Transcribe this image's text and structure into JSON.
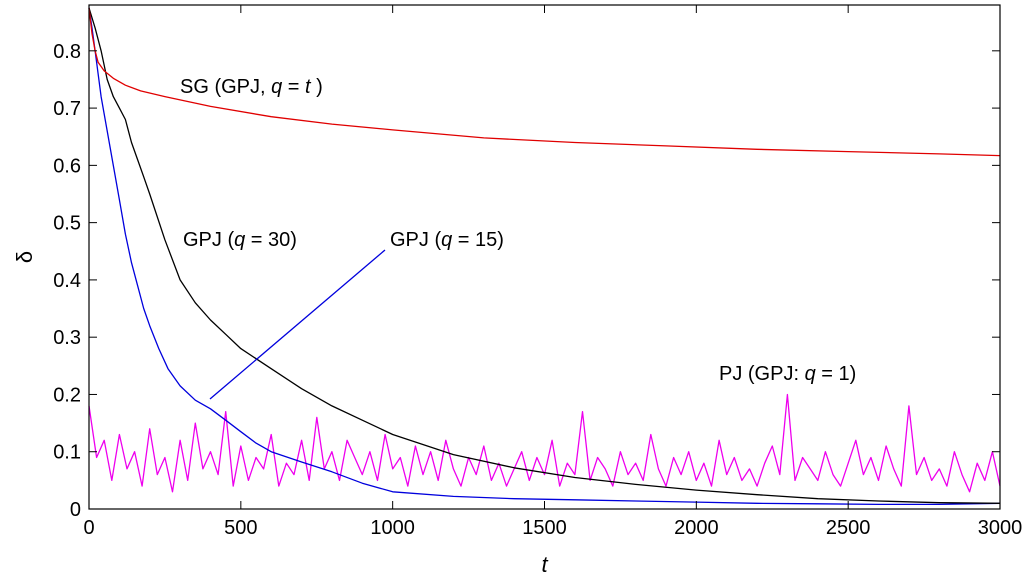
{
  "chart_data": {
    "type": "line",
    "xlabel": "t",
    "ylabel": "δ",
    "xlim": [
      0,
      3000
    ],
    "ylim": [
      0,
      0.88
    ],
    "xticks": [
      0,
      500,
      1000,
      1500,
      2000,
      2500,
      3000
    ],
    "yticks": [
      0,
      0.1,
      0.2,
      0.3,
      0.4,
      0.5,
      0.6,
      0.7,
      0.8
    ],
    "xtick_labels": [
      "0",
      "500",
      "1000",
      "1500",
      "2000",
      "2500",
      "3000"
    ],
    "ytick_labels": [
      "0",
      "0.1",
      "0.2",
      "0.3",
      "0.4",
      "0.5",
      "0.6",
      "0.7",
      "0.8"
    ],
    "grid": false,
    "colors": {
      "sg": "#e00000",
      "gpj30": "#000000",
      "gpj15": "#0000dd",
      "pj": "#ee00ee"
    },
    "series": [
      {
        "key": "sg",
        "x": [
          0,
          10,
          20,
          30,
          50,
          80,
          120,
          170,
          250,
          400,
          600,
          800,
          1000,
          1300,
          1600,
          1900,
          2200,
          2500,
          2800,
          3000
        ],
        "y": [
          0.875,
          0.83,
          0.8,
          0.78,
          0.765,
          0.752,
          0.74,
          0.73,
          0.72,
          0.703,
          0.685,
          0.672,
          0.662,
          0.648,
          0.64,
          0.634,
          0.628,
          0.624,
          0.62,
          0.617
        ]
      },
      {
        "key": "gpj30",
        "x": [
          0,
          20,
          40,
          60,
          80,
          100,
          120,
          140,
          160,
          180,
          200,
          250,
          300,
          350,
          400,
          450,
          500,
          600,
          700,
          800,
          900,
          1000,
          1200,
          1400,
          1600,
          1800,
          2000,
          2200,
          2400,
          2600,
          2800,
          3000
        ],
        "y": [
          0.875,
          0.84,
          0.8,
          0.75,
          0.72,
          0.7,
          0.68,
          0.64,
          0.61,
          0.58,
          0.55,
          0.47,
          0.4,
          0.36,
          0.33,
          0.305,
          0.28,
          0.245,
          0.21,
          0.18,
          0.155,
          0.13,
          0.095,
          0.072,
          0.055,
          0.043,
          0.033,
          0.025,
          0.018,
          0.014,
          0.011,
          0.01
        ]
      },
      {
        "key": "gpj15",
        "x": [
          0,
          10,
          20,
          30,
          40,
          60,
          80,
          100,
          120,
          140,
          160,
          180,
          200,
          230,
          260,
          300,
          350,
          400,
          450,
          500,
          550,
          600,
          700,
          800,
          900,
          1000,
          1200,
          1400,
          1600,
          1800,
          2000,
          2200,
          2400,
          2600,
          2800,
          3000
        ],
        "y": [
          0.875,
          0.84,
          0.8,
          0.76,
          0.72,
          0.66,
          0.6,
          0.54,
          0.48,
          0.43,
          0.39,
          0.35,
          0.32,
          0.28,
          0.245,
          0.215,
          0.19,
          0.175,
          0.155,
          0.135,
          0.115,
          0.1,
          0.082,
          0.065,
          0.045,
          0.03,
          0.022,
          0.018,
          0.016,
          0.014,
          0.012,
          0.01,
          0.009,
          0.008,
          0.008,
          0.01
        ]
      },
      {
        "key": "pj",
        "x": [
          0,
          25,
          50,
          75,
          100,
          125,
          150,
          175,
          200,
          225,
          250,
          275,
          300,
          325,
          350,
          375,
          400,
          425,
          450,
          475,
          500,
          525,
          550,
          575,
          600,
          625,
          650,
          675,
          700,
          725,
          750,
          775,
          800,
          825,
          850,
          875,
          900,
          925,
          950,
          975,
          1000,
          1025,
          1050,
          1075,
          1100,
          1125,
          1150,
          1175,
          1200,
          1225,
          1250,
          1275,
          1300,
          1325,
          1350,
          1375,
          1400,
          1425,
          1450,
          1475,
          1500,
          1525,
          1550,
          1575,
          1600,
          1625,
          1650,
          1675,
          1700,
          1725,
          1750,
          1775,
          1800,
          1825,
          1850,
          1875,
          1900,
          1925,
          1950,
          1975,
          2000,
          2025,
          2050,
          2075,
          2100,
          2125,
          2150,
          2175,
          2200,
          2225,
          2250,
          2275,
          2300,
          2325,
          2350,
          2375,
          2400,
          2425,
          2450,
          2475,
          2500,
          2525,
          2550,
          2575,
          2600,
          2625,
          2650,
          2675,
          2700,
          2725,
          2750,
          2775,
          2800,
          2825,
          2850,
          2875,
          2900,
          2925,
          2950,
          2975,
          3000
        ],
        "y": [
          0.18,
          0.09,
          0.12,
          0.05,
          0.13,
          0.07,
          0.1,
          0.04,
          0.14,
          0.06,
          0.09,
          0.03,
          0.12,
          0.05,
          0.15,
          0.07,
          0.1,
          0.06,
          0.17,
          0.04,
          0.11,
          0.05,
          0.09,
          0.07,
          0.13,
          0.04,
          0.08,
          0.06,
          0.12,
          0.05,
          0.16,
          0.07,
          0.1,
          0.05,
          0.12,
          0.09,
          0.06,
          0.1,
          0.05,
          0.13,
          0.07,
          0.09,
          0.04,
          0.11,
          0.06,
          0.1,
          0.05,
          0.12,
          0.07,
          0.04,
          0.09,
          0.06,
          0.11,
          0.05,
          0.08,
          0.04,
          0.07,
          0.1,
          0.05,
          0.09,
          0.06,
          0.12,
          0.04,
          0.08,
          0.06,
          0.17,
          0.05,
          0.09,
          0.07,
          0.04,
          0.1,
          0.06,
          0.08,
          0.05,
          0.13,
          0.07,
          0.04,
          0.09,
          0.06,
          0.1,
          0.05,
          0.08,
          0.04,
          0.12,
          0.06,
          0.09,
          0.05,
          0.07,
          0.04,
          0.08,
          0.11,
          0.06,
          0.2,
          0.05,
          0.09,
          0.07,
          0.05,
          0.1,
          0.06,
          0.04,
          0.08,
          0.12,
          0.06,
          0.09,
          0.05,
          0.11,
          0.07,
          0.04,
          0.18,
          0.06,
          0.09,
          0.05,
          0.07,
          0.04,
          0.1,
          0.06,
          0.03,
          0.08,
          0.05,
          0.1,
          0.04
        ]
      }
    ],
    "annotations": [
      {
        "key": "sg",
        "prefix": "SG (GPJ, ",
        "var": "q",
        "suffix": " = ",
        "var2": "t",
        "end": " )"
      },
      {
        "key": "gpj30",
        "prefix": "GPJ (",
        "var": "q",
        "suffix": " = 30)"
      },
      {
        "key": "gpj15",
        "prefix": "GPJ (",
        "var": "q",
        "suffix": " = 15)"
      },
      {
        "key": "pj",
        "prefix": "PJ (GPJ: ",
        "var": "q",
        "suffix": " = 1)"
      }
    ]
  }
}
